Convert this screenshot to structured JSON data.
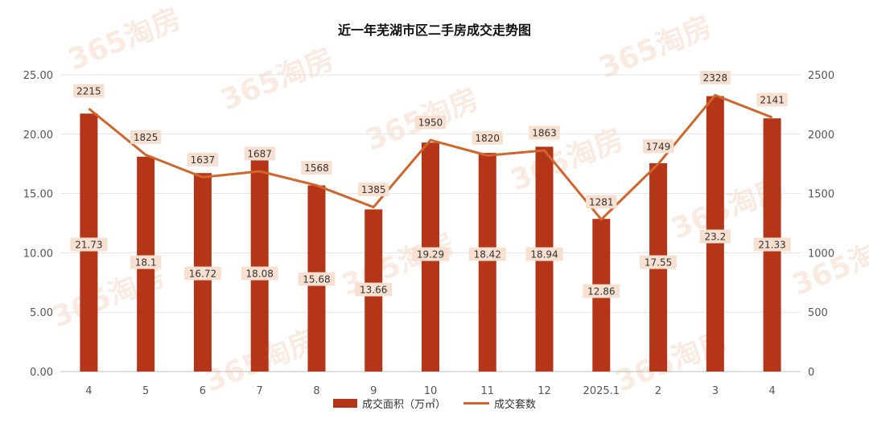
{
  "watermark_text": "365淘房",
  "colors": {
    "bar": "#b53518",
    "line": "#d2652a",
    "label_bg": "#f8e0d1",
    "grid": "#e3e3e3",
    "axis_text": "#555555"
  },
  "chart_data": {
    "type": "bar+line",
    "title": "近一年芜湖市区二手房成交走势图",
    "categories": [
      "4",
      "5",
      "6",
      "7",
      "8",
      "9",
      "10",
      "11",
      "12",
      "2025.1",
      "2",
      "3",
      "4"
    ],
    "series": [
      {
        "name": "成交面积（万㎡）",
        "type": "bar",
        "axis": "left",
        "values": [
          21.73,
          18.1,
          16.72,
          18.08,
          15.68,
          13.66,
          19.29,
          18.42,
          18.94,
          12.86,
          17.55,
          23.2,
          21.33
        ],
        "labels": [
          "21.73",
          "18.1",
          "16.72",
          "18.08",
          "15.68",
          "13.66",
          "19.29",
          "18.42",
          "18.94",
          "12.86",
          "17.55",
          "23.2",
          "21.33"
        ]
      },
      {
        "name": "成交套数",
        "type": "line",
        "axis": "right",
        "values": [
          2215,
          1825,
          1637,
          1687,
          1568,
          1385,
          1950,
          1820,
          1863,
          1281,
          1749,
          2328,
          2141
        ],
        "labels": [
          "2215",
          "1825",
          "1637",
          "1687",
          "1568",
          "1385",
          "1950",
          "1820",
          "1863",
          "1281",
          "1749",
          "2328",
          "2141"
        ]
      }
    ],
    "y_left": {
      "min": 0,
      "max": 25,
      "ticks": [
        "0.00",
        "5.00",
        "10.00",
        "15.00",
        "20.00",
        "25.00"
      ]
    },
    "y_right": {
      "min": 0,
      "max": 2500,
      "ticks": [
        "0",
        "500",
        "1000",
        "1500",
        "2000",
        "2500"
      ]
    },
    "grid": true,
    "legend_position": "bottom"
  }
}
